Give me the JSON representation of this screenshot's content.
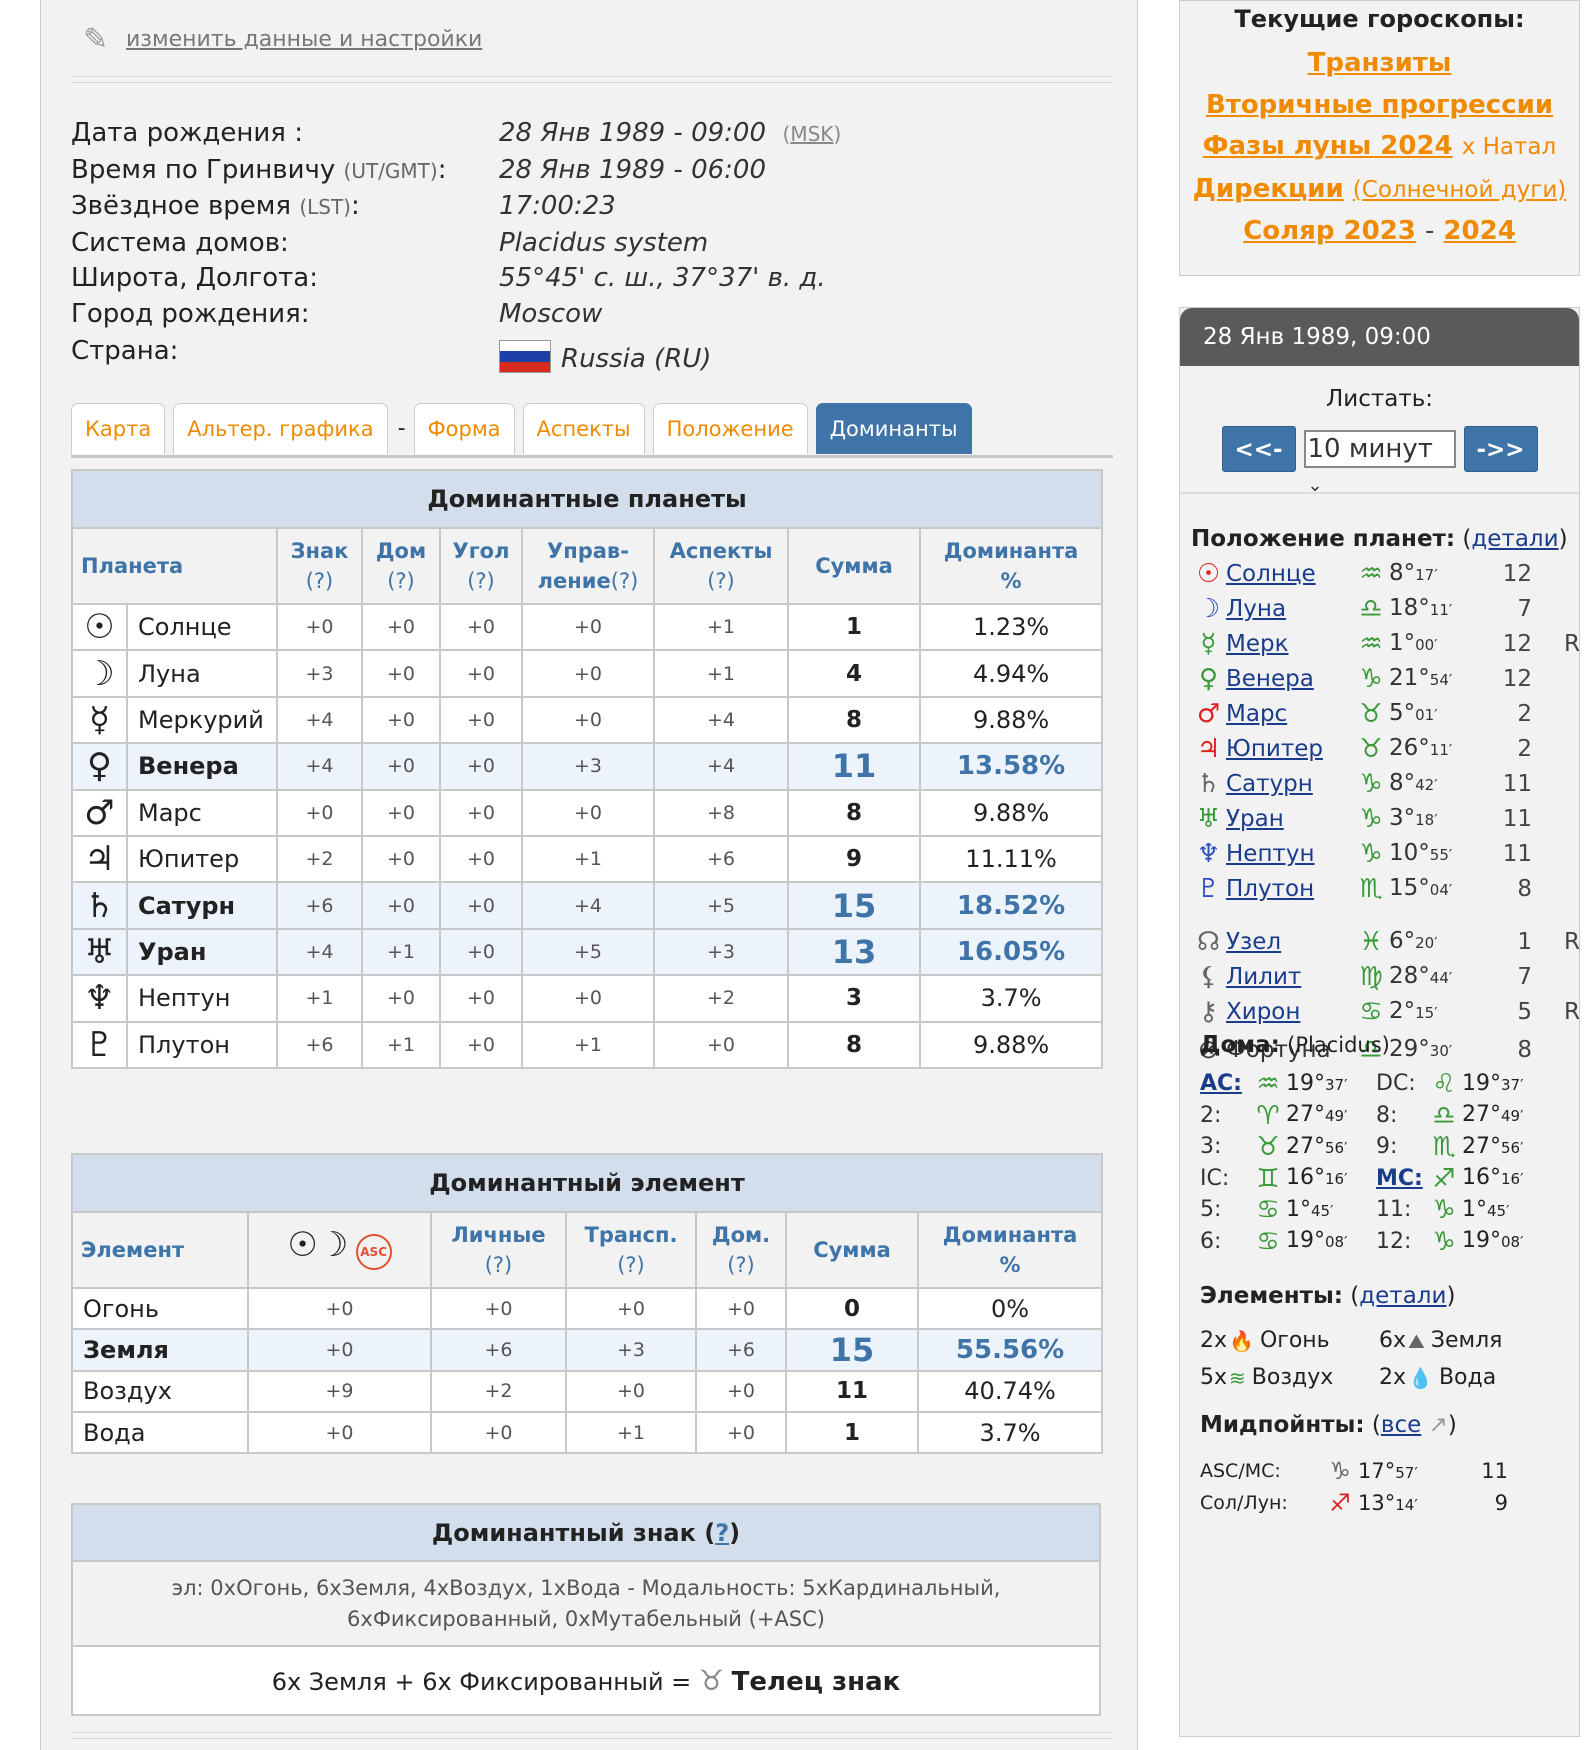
{
  "header": {
    "edit_link": "изменить данные и настройки",
    "pencil_icon": "pencil-icon"
  },
  "info": {
    "birth_date_label": "Дата рождения :",
    "birth_date": "28 Янв 1989 - 09:00",
    "tz": "MSK",
    "gmt_label": "Время по Гринвичу",
    "gmt_sub": "(UT/GMT)",
    "gmt_value": "28 Янв 1989 - 06:00",
    "lst_label": "Звёздное время",
    "lst_sub": "(LST)",
    "lst_value": "17:00:23",
    "house_label": "Система домов:",
    "house_value": "Placidus system",
    "latlon_label": "Широта, Долгота:",
    "latlon_value": "55°45' с. ш., 37°37' в. д.",
    "city_label": "Город рождения:",
    "city_value": "Moscow",
    "country_label": "Страна:",
    "country_value": "Russia (RU)"
  },
  "tabs": [
    "Карта",
    "Альтер. графика",
    "-",
    "Форма",
    "Аспекты",
    "Положение",
    "Доминанты"
  ],
  "dom_planets": {
    "title": "Доминантные планеты",
    "headers": {
      "planet": "Планета",
      "sign": "Знак",
      "house": "Дом",
      "angle": "Угол",
      "rule1": "Управ-",
      "rule2": "ление",
      "aspects": "Аспекты",
      "sum": "Сумма",
      "dom1": "Доминанта",
      "dom2": "%",
      "q": "(?)"
    },
    "rows": [
      {
        "sym": "☉",
        "name": "Солнце",
        "sign": "+0",
        "house": "+0",
        "angle": "+0",
        "rule": "+0",
        "asp": "+1",
        "sum": "1",
        "pct": "1.23%"
      },
      {
        "sym": "☽",
        "name": "Луна",
        "sign": "+3",
        "house": "+0",
        "angle": "+0",
        "rule": "+0",
        "asp": "+1",
        "sum": "4",
        "pct": "4.94%"
      },
      {
        "sym": "☿",
        "name": "Меркурий",
        "sign": "+4",
        "house": "+0",
        "angle": "+0",
        "rule": "+0",
        "asp": "+4",
        "sum": "8",
        "pct": "9.88%"
      },
      {
        "sym": "♀",
        "name": "Венера",
        "sign": "+4",
        "house": "+0",
        "angle": "+0",
        "rule": "+3",
        "asp": "+4",
        "sum": "11",
        "pct": "13.58%"
      },
      {
        "sym": "♂",
        "name": "Марс",
        "sign": "+0",
        "house": "+0",
        "angle": "+0",
        "rule": "+0",
        "asp": "+8",
        "sum": "8",
        "pct": "9.88%"
      },
      {
        "sym": "♃",
        "name": "Юпитер",
        "sign": "+2",
        "house": "+0",
        "angle": "+0",
        "rule": "+1",
        "asp": "+6",
        "sum": "9",
        "pct": "11.11%"
      },
      {
        "sym": "♄",
        "name": "Сатурн",
        "sign": "+6",
        "house": "+0",
        "angle": "+0",
        "rule": "+4",
        "asp": "+5",
        "sum": "15",
        "pct": "18.52%"
      },
      {
        "sym": "♅",
        "name": "Уран",
        "sign": "+4",
        "house": "+1",
        "angle": "+0",
        "rule": "+5",
        "asp": "+3",
        "sum": "13",
        "pct": "16.05%"
      },
      {
        "sym": "♆",
        "name": "Нептун",
        "sign": "+1",
        "house": "+0",
        "angle": "+0",
        "rule": "+0",
        "asp": "+2",
        "sum": "3",
        "pct": "3.7%"
      },
      {
        "sym": "♇",
        "name": "Плутон",
        "sign": "+6",
        "house": "+1",
        "angle": "+0",
        "rule": "+1",
        "asp": "+0",
        "sum": "8",
        "pct": "9.88%"
      }
    ]
  },
  "dom_elements": {
    "title": "Доминантный элемент",
    "headers": {
      "element": "Элемент",
      "icons": "☉☽ASC",
      "personal": "Личные",
      "transp": "Трансп.",
      "house": "Дом.",
      "sum": "Сумма",
      "dom1": "Доминанта",
      "dom2": "%",
      "q": "(?)",
      "asc": "ASC"
    },
    "rows": [
      {
        "name": "Огонь",
        "a": "+0",
        "b": "+0",
        "c": "+0",
        "d": "+0",
        "sum": "0",
        "pct": "0%"
      },
      {
        "name": "Земля",
        "a": "+0",
        "b": "+6",
        "c": "+3",
        "d": "+6",
        "sum": "15",
        "pct": "55.56%"
      },
      {
        "name": "Воздух",
        "a": "+9",
        "b": "+2",
        "c": "+0",
        "d": "+0",
        "sum": "11",
        "pct": "40.74%"
      },
      {
        "name": "Вода",
        "a": "+0",
        "b": "+0",
        "c": "+1",
        "d": "+0",
        "sum": "1",
        "pct": "3.7%"
      }
    ]
  },
  "dom_sign": {
    "title": "Доминантный знак",
    "q": "?",
    "line1": "эл: 0xОгонь, 6xЗемля, 4xВоздух, 1xВода -  Модальность: 5xКардинальный,",
    "line2": "6xФиксированный, 0xМутабельный (+ASC)",
    "result_prefix": "6x Земля + 6x Фиксированный =",
    "result_sign": "Телец знак",
    "sign_symbol": "♉"
  },
  "side_current": {
    "title": "Текущие гороскопы:",
    "transits": "Транзиты",
    "progressions": "Вторичные прогрессии",
    "moon_phases": "Фазы луны 2024",
    "moon_suffix": "x Натал",
    "directions": "Дирекции",
    "directions_sub": "(Солнечной дуги)",
    "solar": "Соляр 2023",
    "dash": "-",
    "solar2": "2024"
  },
  "side_chart": {
    "date": "28 Янв 1989, 09:00",
    "scroll_label": "Листать:",
    "prev": "<<-",
    "step": "10 минут",
    "next": "->>",
    "planets_title": "Положение планет:",
    "details": "детали",
    "planets": [
      {
        "sym": "☉",
        "col": "#e02020",
        "name": "Солнце",
        "zs": "♒",
        "deg": "8°",
        "min": "17′",
        "house": "12",
        "r": ""
      },
      {
        "sym": "☽",
        "col": "#3050c0",
        "name": "Луна",
        "zs": "♎",
        "deg": "18°",
        "min": "11′",
        "house": "7",
        "r": ""
      },
      {
        "sym": "☿",
        "col": "#3a9a3a",
        "name": "Мерк",
        "zs": "♒",
        "deg": "1°",
        "min": "00′",
        "house": "12",
        "r": "R"
      },
      {
        "sym": "♀",
        "col": "#3a9a3a",
        "name": "Венера",
        "zs": "♑",
        "deg": "21°",
        "min": "54′",
        "house": "12",
        "r": ""
      },
      {
        "sym": "♂",
        "col": "#e02020",
        "name": "Марс",
        "zs": "♉",
        "deg": "5°",
        "min": "01′",
        "house": "2",
        "r": ""
      },
      {
        "sym": "♃",
        "col": "#e02020",
        "name": "Юпитер",
        "zs": "♉",
        "deg": "26°",
        "min": "11′",
        "house": "2",
        "r": ""
      },
      {
        "sym": "♄",
        "col": "#666",
        "name": "Сатурн",
        "zs": "♑",
        "deg": "8°",
        "min": "42′",
        "house": "11",
        "r": ""
      },
      {
        "sym": "♅",
        "col": "#3a9a3a",
        "name": "Уран",
        "zs": "♑",
        "deg": "3°",
        "min": "18′",
        "house": "11",
        "r": ""
      },
      {
        "sym": "♆",
        "col": "#3050c0",
        "name": "Нептун",
        "zs": "♑",
        "deg": "10°",
        "min": "55′",
        "house": "11",
        "r": ""
      },
      {
        "sym": "♇",
        "col": "#3050c0",
        "name": "Плутон",
        "zs": "♏",
        "deg": "15°",
        "min": "04′",
        "house": "8",
        "r": ""
      },
      {
        "sym": "☊",
        "col": "#666",
        "name": "Узел",
        "zs": "♓",
        "deg": "6°",
        "min": "20′",
        "house": "1",
        "r": "R"
      },
      {
        "sym": "⚸",
        "col": "#666",
        "name": "Лилит",
        "zs": "♍",
        "deg": "28°",
        "min": "44′",
        "house": "7",
        "r": ""
      },
      {
        "sym": "⚷",
        "col": "#666",
        "name": "Хирон",
        "zs": "♋",
        "deg": "2°",
        "min": "15′",
        "house": "5",
        "r": "R"
      },
      {
        "sym": "⊗",
        "col": "#444",
        "name": "Фортуна",
        "zs": "♎",
        "deg": "29°",
        "min": "30′",
        "house": "8",
        "r": ""
      }
    ],
    "houses_title": "Дома:",
    "houses_sys": "(Placidus)",
    "houses": [
      {
        "l": "AC:",
        "z": "♒",
        "d": "19°",
        "m": "37′",
        "l2": "DC:",
        "z2": "♌",
        "d2": "19°",
        "m2": "37′"
      },
      {
        "l": "2:",
        "z": "♈",
        "d": "27°",
        "m": "49′",
        "l2": "8:",
        "z2": "♎",
        "d2": "27°",
        "m2": "49′"
      },
      {
        "l": "3:",
        "z": "♉",
        "d": "27°",
        "m": "56′",
        "l2": "9:",
        "z2": "♏",
        "d2": "27°",
        "m2": "56′"
      },
      {
        "l": "IC:",
        "z": "♊",
        "d": "16°",
        "m": "16′",
        "l2": "MC:",
        "z2": "♐",
        "d2": "16°",
        "m2": "16′"
      },
      {
        "l": "5:",
        "z": "♋",
        "d": "1°",
        "m": "45′",
        "l2": "11:",
        "z2": "♑",
        "d2": "1°",
        "m2": "45′"
      },
      {
        "l": "6:",
        "z": "♋",
        "d": "19°",
        "m": "08′",
        "l2": "12:",
        "z2": "♑",
        "d2": "19°",
        "m2": "08′"
      }
    ],
    "elements_title": "Элементы:",
    "elements_details": "детали",
    "elements": [
      {
        "n": "2x",
        "ic": "🔥",
        "name": "Огонь"
      },
      {
        "n": "6x",
        "ic": "⛰",
        "name": "Земля"
      },
      {
        "n": "5x",
        "ic": "≋",
        "name": "Воздух"
      },
      {
        "n": "2x",
        "ic": "💧",
        "name": "Вода"
      }
    ],
    "midpoints_title": "Мидпойнты:",
    "midpoints_all": "все",
    "midpoints": [
      {
        "l": "ASC/MC:",
        "z": "♑",
        "d": "17°",
        "m": "57′",
        "h": "11"
      },
      {
        "l": "Сол/Лун:",
        "z": "♐",
        "d": "13°",
        "m": "14′",
        "h": "9"
      }
    ]
  },
  "colors": {
    "accent": "#3f74a8",
    "orange": "#f08a00",
    "caption": "#d3deec",
    "highlight": "#edf3fb"
  }
}
